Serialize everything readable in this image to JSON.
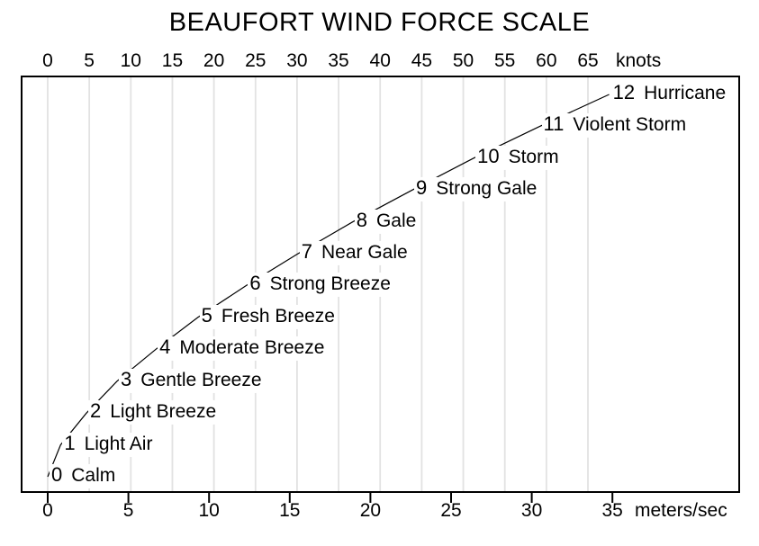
{
  "chart_data": {
    "type": "line",
    "title": "BEAUFORT WIND FORCE SCALE",
    "top_axis": {
      "unit_label": "knots",
      "ticks": [
        0,
        5,
        10,
        15,
        20,
        25,
        30,
        35,
        40,
        45,
        50,
        55,
        60,
        65
      ]
    },
    "bottom_axis": {
      "unit_label": "meters/sec",
      "ticks": [
        0,
        5,
        10,
        15,
        20,
        25,
        30,
        35
      ]
    },
    "grid": {
      "orientation": "vertical",
      "interval_knots": 5,
      "color": "#e2e2e2"
    },
    "line_color": "#000000",
    "background_color": "#ffffff",
    "legend": "none",
    "points": [
      {
        "force": 0,
        "name": "Calm",
        "speed_ms": 0.0
      },
      {
        "force": 1,
        "name": "Light Air",
        "speed_ms": 0.8
      },
      {
        "force": 2,
        "name": "Light Breeze",
        "speed_ms": 2.4
      },
      {
        "force": 3,
        "name": "Gentle Breeze",
        "speed_ms": 4.3
      },
      {
        "force": 4,
        "name": "Moderate Breeze",
        "speed_ms": 6.7
      },
      {
        "force": 5,
        "name": "Fresh Breeze",
        "speed_ms": 9.3
      },
      {
        "force": 6,
        "name": "Strong Breeze",
        "speed_ms": 12.3
      },
      {
        "force": 7,
        "name": "Near Gale",
        "speed_ms": 15.5
      },
      {
        "force": 8,
        "name": "Gale",
        "speed_ms": 18.9
      },
      {
        "force": 9,
        "name": "Strong Gale",
        "speed_ms": 22.6
      },
      {
        "force": 10,
        "name": "Storm",
        "speed_ms": 26.4
      },
      {
        "force": 11,
        "name": "Violent Storm",
        "speed_ms": 30.5
      },
      {
        "force": 12,
        "name": "Hurricane",
        "speed_ms": 34.8
      }
    ]
  }
}
